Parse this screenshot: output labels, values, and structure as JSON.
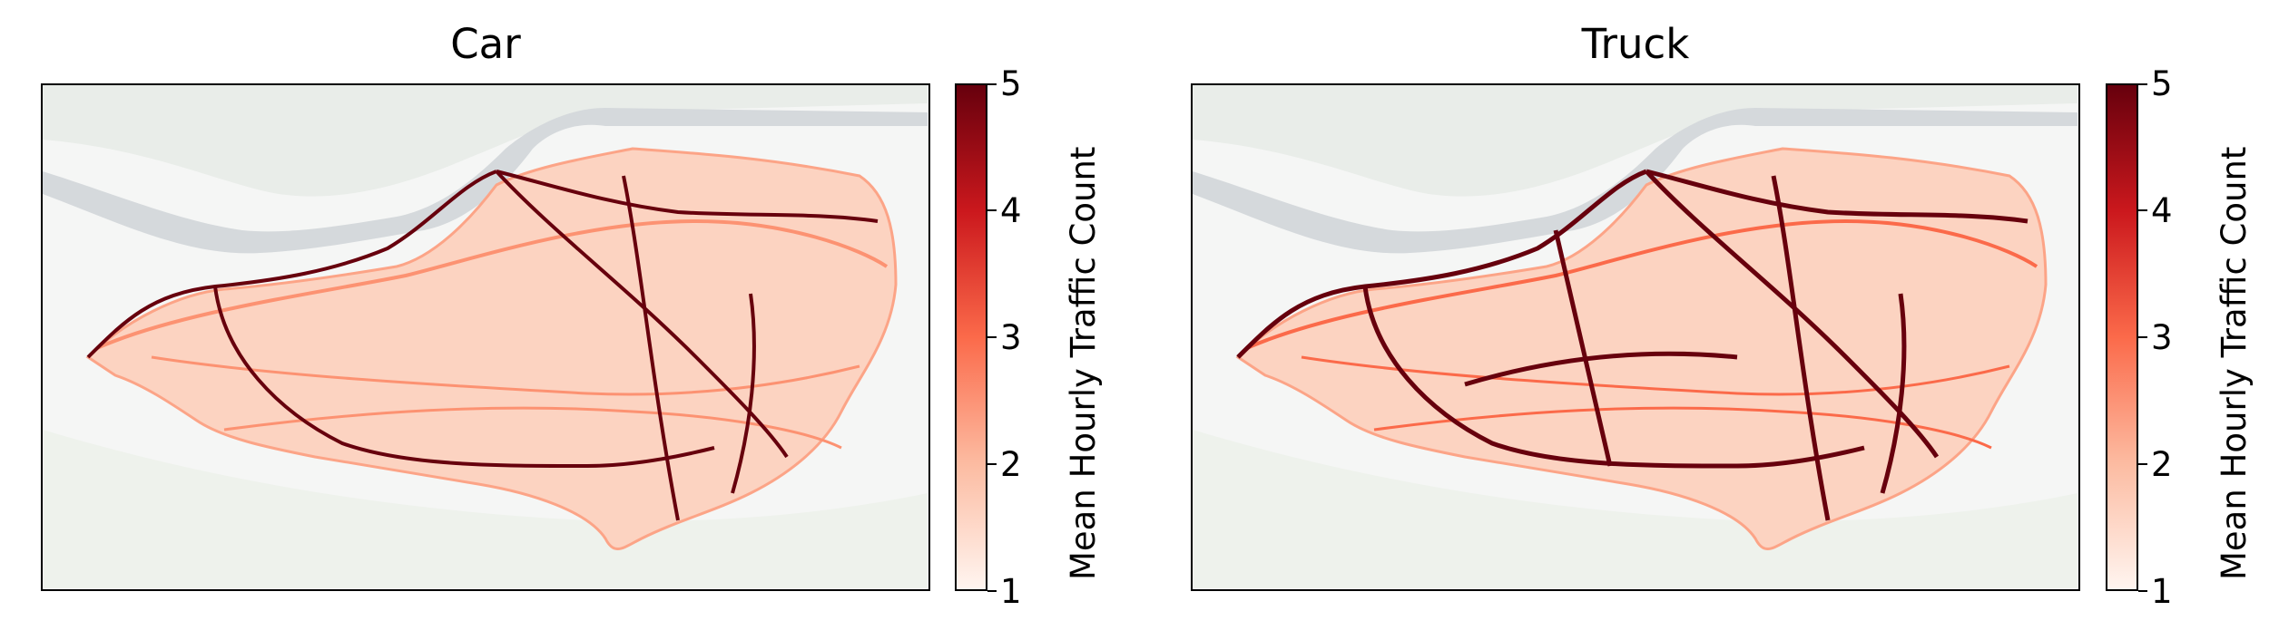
{
  "panels": [
    {
      "title": "Car",
      "colorbar": {
        "label": "Mean Hourly Traffic Count",
        "ticks": [
          "1",
          "2",
          "3",
          "4",
          "5"
        ],
        "min": 1,
        "max": 5,
        "colormap": "Reds"
      }
    },
    {
      "title": "Truck",
      "colorbar": {
        "label": "Mean Hourly Traffic Count",
        "ticks": [
          "1",
          "2",
          "3",
          "4",
          "5"
        ],
        "min": 1,
        "max": 5,
        "colormap": "Reds"
      }
    }
  ],
  "colors": {
    "low": "#fff5f0",
    "mid_low": "#fcbba1",
    "mid": "#fb6a4a",
    "mid_high": "#cb181d",
    "high": "#67000d",
    "water": "#d5d9dc",
    "land": "#f5f6f5",
    "green": "#eef2ec"
  }
}
